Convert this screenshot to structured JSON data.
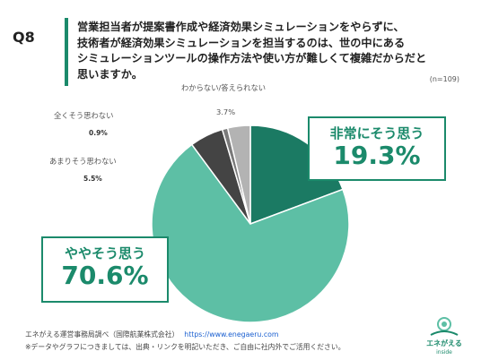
{
  "question": {
    "number": "Q8",
    "lines": [
      "営業担当者が提案書作成や経済効果シミュレーションをやらずに、",
      "技術者が経済効果シミュレーションを担当するのは、世の中にある",
      "シミュレーションツールの操作方法や使い方が難しくて複雑だからだと",
      "思いますか。"
    ],
    "sample": "(n=109)"
  },
  "colors": {
    "accent": "#1b8a6b",
    "dark_green": "#1b7a63",
    "light_green": "#5dbfa5",
    "dark_gray": "#444444",
    "mid_gray": "#7a7a7a",
    "light_gray": "#b3b3b3"
  },
  "chart_data": {
    "type": "pie",
    "slices": [
      {
        "label": "非常にそう思う",
        "value": 19.3,
        "display": "19.3%",
        "color": "#1b7a63"
      },
      {
        "label": "ややそう思う",
        "value": 70.6,
        "display": "70.6%",
        "color": "#5dbfa5"
      },
      {
        "label": "あまりそう思わない",
        "value": 5.5,
        "display": "5.5%",
        "color": "#444444"
      },
      {
        "label": "全くそう思わない",
        "value": 0.9,
        "display": "0.9%",
        "color": "#7a7a7a"
      },
      {
        "label": "わからない/答えられない",
        "value": 3.7,
        "display": "3.7%",
        "color": "#b3b3b3"
      }
    ]
  },
  "footer": {
    "source": "エネがえる運営事務局調べ（国際航業株式会社）",
    "url": "https://www.enegaeru.com",
    "note": "※データやグラフにつきましては、出典・リンクを明記いただき、ご自由に社内外でご活用ください。"
  },
  "logo": {
    "text": "エネがえる",
    "subtext": "inside",
    "icon": "enegaeru-logo-icon"
  }
}
